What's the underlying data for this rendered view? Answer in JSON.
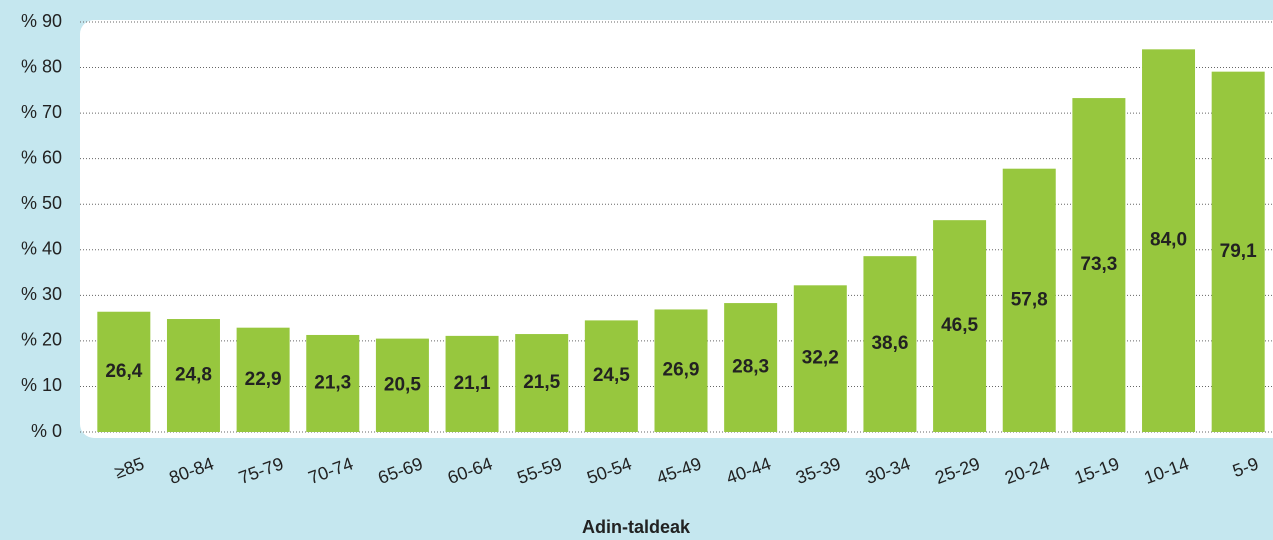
{
  "chart_data": {
    "type": "bar",
    "x_label": "Adin-taldeak",
    "categories": [
      "≥85",
      "80-84",
      "75-79",
      "70-74",
      "65-69",
      "60-64",
      "55-59",
      "50-54",
      "45-49",
      "40-44",
      "35-39",
      "30-34",
      "25-29",
      "20-24",
      "15-19",
      "10-14",
      "5-9"
    ],
    "values": [
      26.4,
      24.8,
      22.9,
      21.3,
      20.5,
      21.1,
      21.5,
      24.5,
      26.9,
      28.3,
      32.2,
      38.6,
      46.5,
      57.8,
      73.3,
      84.0,
      79.1
    ],
    "value_labels": [
      "26,4",
      "24,8",
      "22,9",
      "21,3",
      "20,5",
      "21,1",
      "21,5",
      "24,5",
      "26,9",
      "28,3",
      "32,2",
      "38,6",
      "46,5",
      "57,8",
      "73,3",
      "84,0",
      "79,1"
    ],
    "color": "#97c73e",
    "ylim": [
      0,
      90
    ],
    "yticks": [
      {
        "value": 0,
        "label": "% 0"
      },
      {
        "value": 10,
        "label": "% 10"
      },
      {
        "value": 20,
        "label": "% 20"
      },
      {
        "value": 30,
        "label": "% 30"
      },
      {
        "value": 40,
        "label": "% 40"
      },
      {
        "value": 50,
        "label": "% 50"
      },
      {
        "value": 60,
        "label": "% 60"
      },
      {
        "value": 70,
        "label": "% 70"
      },
      {
        "value": 80,
        "label": "% 80"
      },
      {
        "value": 90,
        "label": "% 90"
      }
    ],
    "grid": true
  }
}
